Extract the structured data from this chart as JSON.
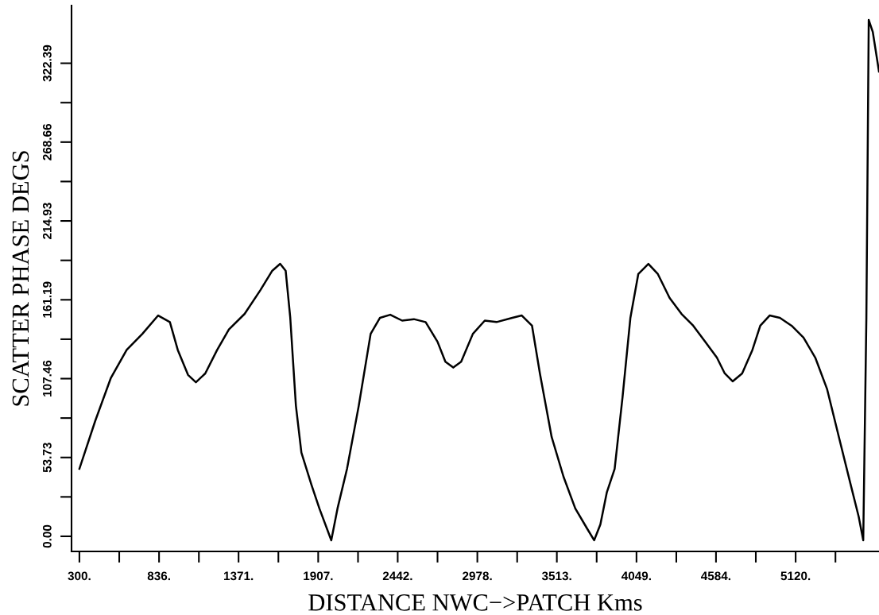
{
  "chart_data": {
    "type": "line",
    "xlabel": "DISTANCE NWC−>PATCH Kms",
    "ylabel": "SCATTER PHASE DEGS",
    "x": [
      300,
      406,
      512,
      618,
      724,
      830,
      909,
      962,
      1031,
      1084,
      1147,
      1227,
      1306,
      1412,
      1518,
      1598,
      1651,
      1688,
      1719,
      1757,
      1794,
      1862,
      1915,
      1995,
      2037,
      2101,
      2180,
      2260,
      2323,
      2392,
      2472,
      2551,
      2630,
      2710,
      2763,
      2816,
      2869,
      2948,
      3028,
      3107,
      3213,
      3277,
      3346,
      3399,
      3478,
      3558,
      3637,
      3716,
      3764,
      3806,
      3849,
      3902,
      3955,
      4008,
      4061,
      4129,
      4193,
      4272,
      4352,
      4431,
      4511,
      4590,
      4643,
      4696,
      4760,
      4829,
      4882,
      4945,
      5014,
      5093,
      5173,
      5252,
      5332,
      5411,
      5491,
      5544,
      5575,
      5596,
      5612,
      5639,
      5681
    ],
    "series": [
      {
        "color": "#000000",
        "values": [
          46,
          78.5,
          108,
          127,
          138,
          150.5,
          146,
          127,
          110,
          105,
          111,
          127,
          141,
          151.6,
          167.8,
          181,
          185.7,
          181,
          148.9,
          89,
          57,
          35,
          19,
          -2.7,
          19,
          46,
          89,
          138,
          148.9,
          151,
          147,
          148,
          146,
          132.6,
          119,
          115,
          119,
          138,
          147,
          146,
          148.9,
          150.5,
          143.5,
          111,
          67.7,
          40.6,
          19,
          5.4,
          -2.7,
          8.1,
          29.8,
          46,
          94.7,
          148.9,
          178.7,
          185.7,
          178.7,
          162.4,
          151.6,
          143.5,
          132.6,
          121.8,
          111,
          105.6,
          111,
          127,
          143.5,
          150.5,
          148.9,
          143.5,
          135.4,
          121.8,
          100.2,
          67.7,
          35,
          13.5,
          -2.7,
          148.9,
          351.9,
          343.8,
          316.7
        ]
      }
    ],
    "xlim": [
      247,
      5681
    ],
    "xticks": [
      {
        "value": 300,
        "label": "300."
      },
      {
        "value": 568,
        "label": null
      },
      {
        "value": 836,
        "label": "836."
      },
      {
        "value": 1104,
        "label": null
      },
      {
        "value": 1371,
        "label": "1371."
      },
      {
        "value": 1639,
        "label": null
      },
      {
        "value": 1907,
        "label": "1907."
      },
      {
        "value": 2175,
        "label": null
      },
      {
        "value": 2442,
        "label": "2442."
      },
      {
        "value": 2710,
        "label": null
      },
      {
        "value": 2978,
        "label": "2978."
      },
      {
        "value": 3246,
        "label": null
      },
      {
        "value": 3513,
        "label": "3513."
      },
      {
        "value": 3781,
        "label": null
      },
      {
        "value": 4049,
        "label": "4049."
      },
      {
        "value": 4317,
        "label": null
      },
      {
        "value": 4584,
        "label": "4584."
      },
      {
        "value": 4852,
        "label": null
      },
      {
        "value": 5120,
        "label": "5120."
      },
      {
        "value": 5388,
        "label": null
      }
    ],
    "ylim": [
      -10.3,
      361.7
    ],
    "yticks": [
      {
        "value": 0,
        "label": "0.00"
      },
      {
        "value": 26.865,
        "label": null
      },
      {
        "value": 53.73,
        "label": "53.73"
      },
      {
        "value": 80.595,
        "label": null
      },
      {
        "value": 107.46,
        "label": "107.46"
      },
      {
        "value": 134.325,
        "label": null
      },
      {
        "value": 161.19,
        "label": "161.19"
      },
      {
        "value": 188.06,
        "label": null
      },
      {
        "value": 214.93,
        "label": "214.93"
      },
      {
        "value": 241.795,
        "label": null
      },
      {
        "value": 268.66,
        "label": "268.66"
      },
      {
        "value": 295.525,
        "label": null
      },
      {
        "value": 322.39,
        "label": "322.39"
      }
    ],
    "grid": false,
    "legend": false,
    "marker": "none",
    "line_style": "solid"
  }
}
